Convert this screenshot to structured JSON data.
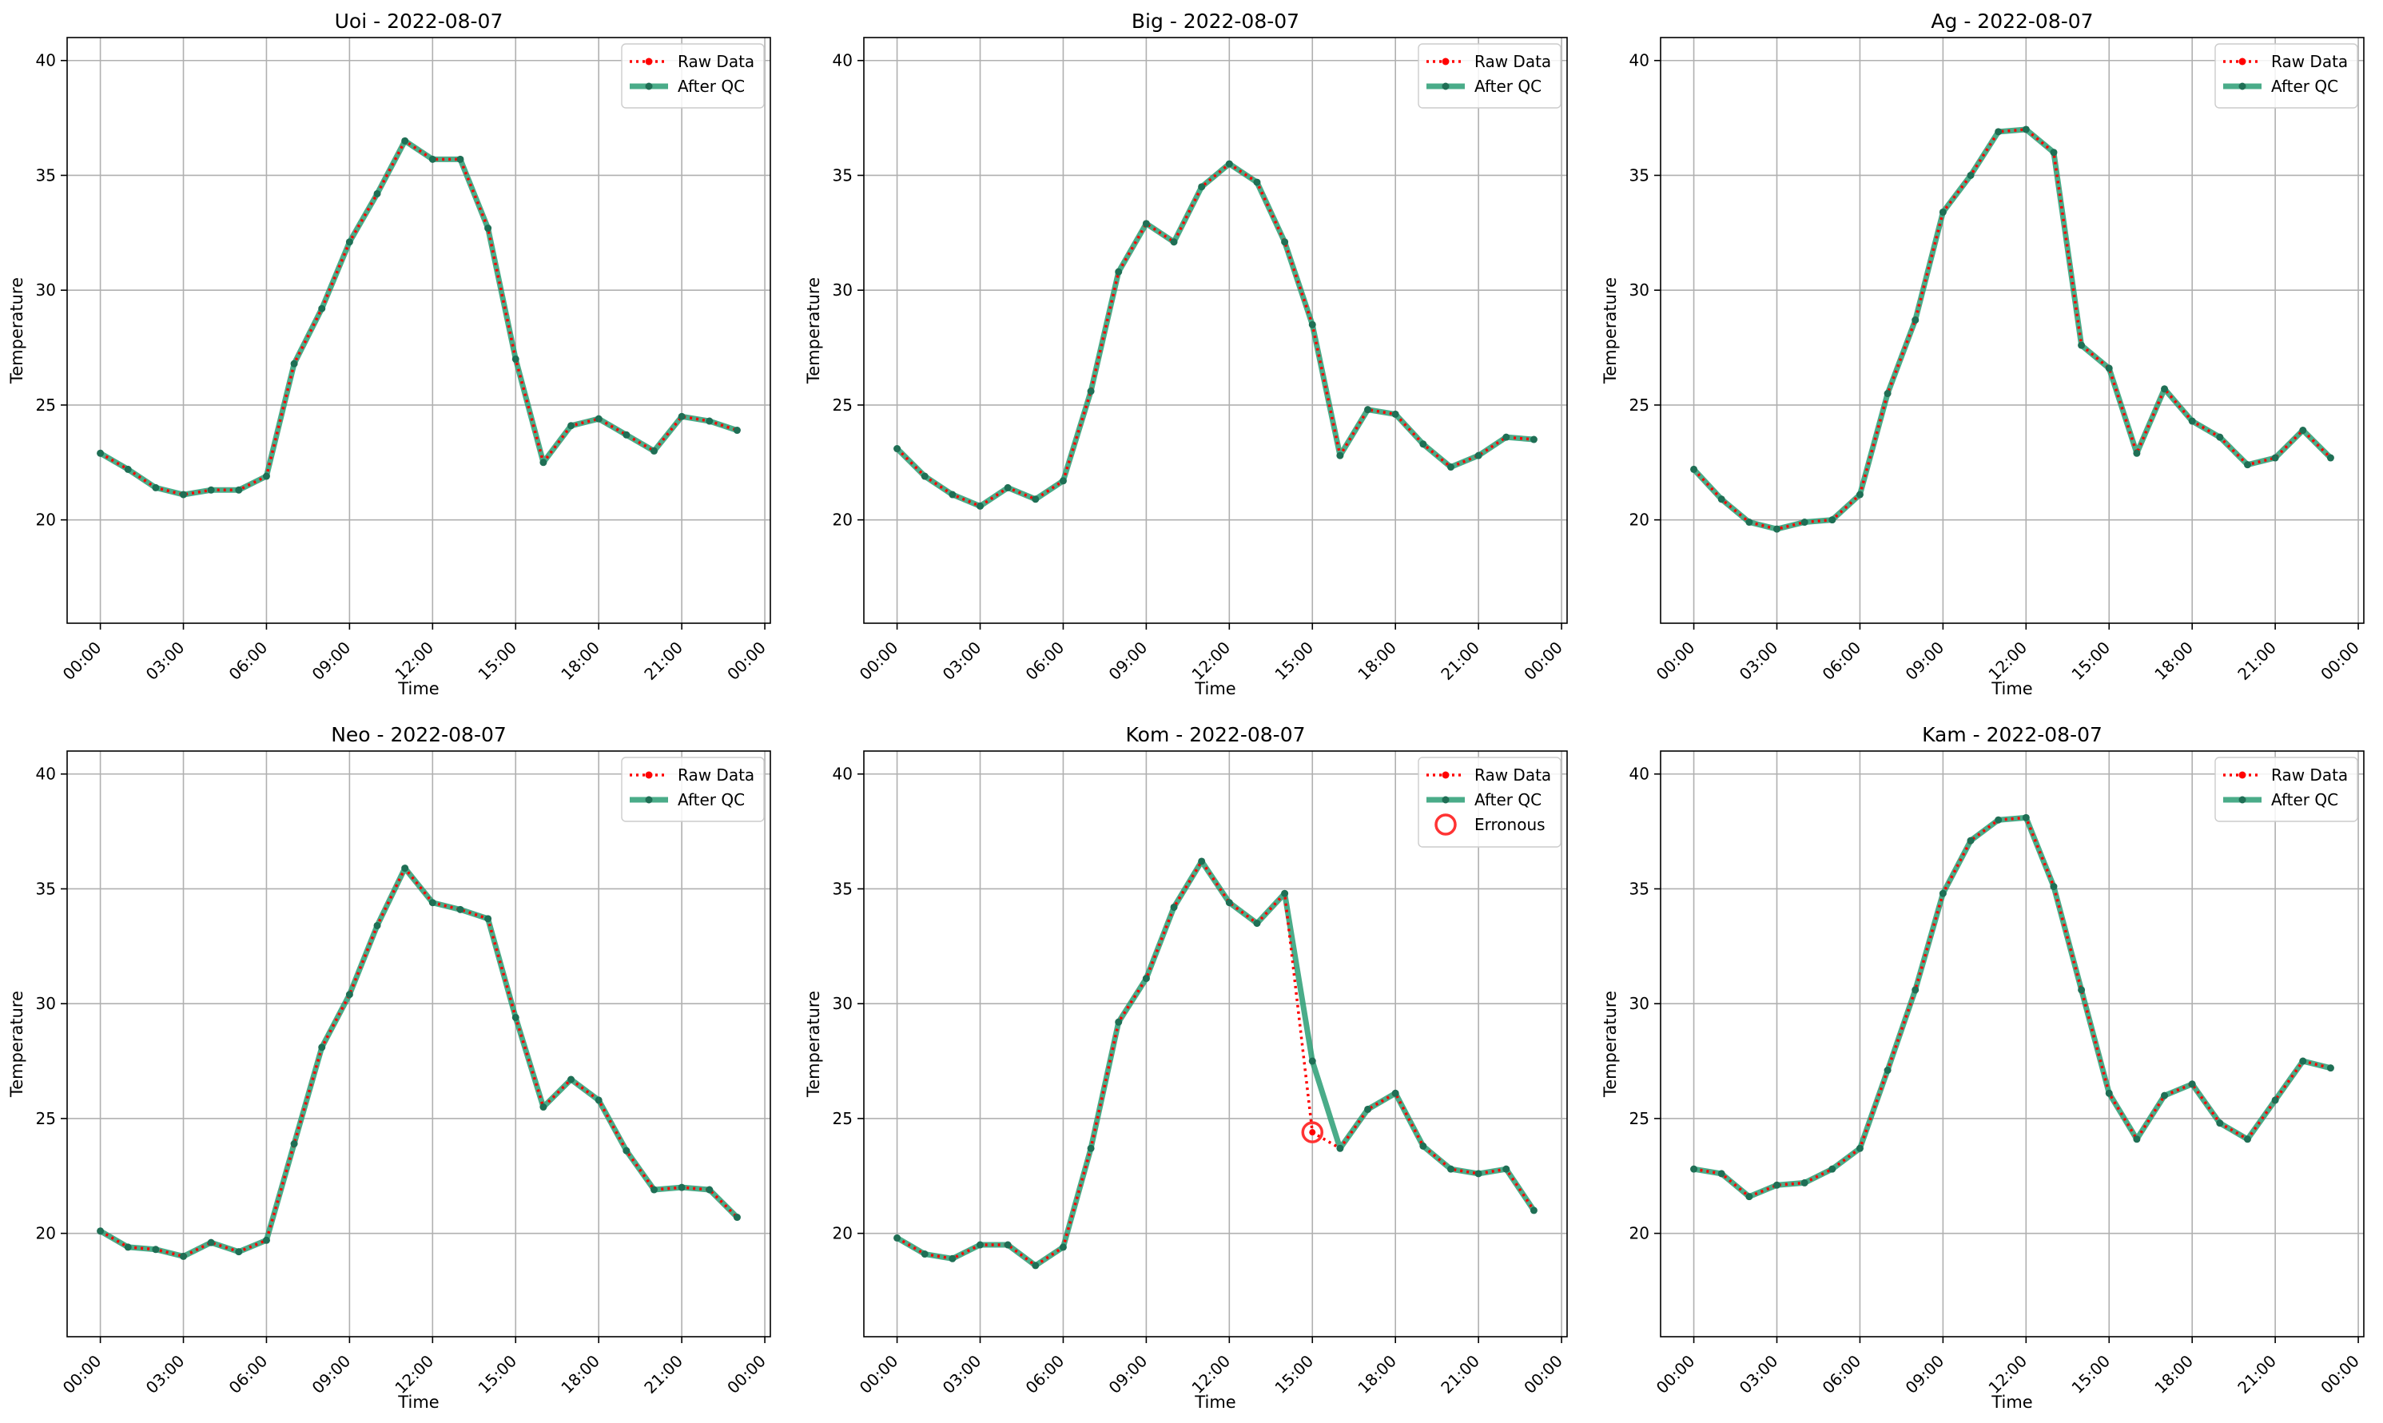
{
  "figure": {
    "colors": {
      "raw": "#ff0000",
      "qc": "#2a9d74",
      "qc_marker": "#1f6f55",
      "erroneous": "#ff3333"
    },
    "legend_labels": {
      "raw": "Raw Data",
      "qc": "After QC",
      "erroneous": "Erronous"
    },
    "xtick_labels": [
      "00:00",
      "03:00",
      "06:00",
      "09:00",
      "12:00",
      "15:00",
      "18:00",
      "21:00",
      "00:00"
    ],
    "ytick_labels": [
      "20",
      "25",
      "30",
      "35",
      "40"
    ]
  },
  "chart_data": [
    {
      "type": "line",
      "title": "Uoi - 2022-08-07",
      "xlabel": "Time",
      "ylabel": "Temperature",
      "ylim": [
        15.5,
        41
      ],
      "xlim_hours": [
        -1.2,
        24.2
      ],
      "grid": true,
      "legend": "top-right",
      "x_hours": [
        0,
        1,
        2,
        3,
        4,
        5,
        6,
        7,
        8,
        9,
        10,
        11,
        12,
        13,
        14,
        15,
        16,
        17,
        18,
        19,
        20,
        21,
        22,
        23
      ],
      "series": [
        {
          "name": "Raw Data",
          "values": [
            22.9,
            22.2,
            21.4,
            21.1,
            21.3,
            21.3,
            21.9,
            26.8,
            29.2,
            32.1,
            34.2,
            36.5,
            35.7,
            35.7,
            32.7,
            27.0,
            22.5,
            24.1,
            24.4,
            23.7,
            23.0,
            24.5,
            24.3,
            23.9
          ]
        },
        {
          "name": "After QC",
          "values": [
            22.9,
            22.2,
            21.4,
            21.1,
            21.3,
            21.3,
            21.9,
            26.8,
            29.2,
            32.1,
            34.2,
            36.5,
            35.7,
            35.7,
            32.7,
            27.0,
            22.5,
            24.1,
            24.4,
            23.7,
            23.0,
            24.5,
            24.3,
            23.9
          ]
        }
      ],
      "erroneous": []
    },
    {
      "type": "line",
      "title": "Big - 2022-08-07",
      "xlabel": "Time",
      "ylabel": "Temperature",
      "ylim": [
        15.5,
        41
      ],
      "xlim_hours": [
        -1.2,
        24.2
      ],
      "grid": true,
      "legend": "top-right",
      "x_hours": [
        0,
        1,
        2,
        3,
        4,
        5,
        6,
        7,
        8,
        9,
        10,
        11,
        12,
        13,
        14,
        15,
        16,
        17,
        18,
        19,
        20,
        21,
        22,
        23
      ],
      "series": [
        {
          "name": "Raw Data",
          "values": [
            23.1,
            21.9,
            21.1,
            20.6,
            21.4,
            20.9,
            21.7,
            25.6,
            30.8,
            32.9,
            32.1,
            34.5,
            35.5,
            34.7,
            32.1,
            28.5,
            22.8,
            24.8,
            24.6,
            23.3,
            22.3,
            22.8,
            23.6,
            23.5
          ]
        },
        {
          "name": "After QC",
          "values": [
            23.1,
            21.9,
            21.1,
            20.6,
            21.4,
            20.9,
            21.7,
            25.6,
            30.8,
            32.9,
            32.1,
            34.5,
            35.5,
            34.7,
            32.1,
            28.5,
            22.8,
            24.8,
            24.6,
            23.3,
            22.3,
            22.8,
            23.6,
            23.5
          ]
        }
      ],
      "erroneous": []
    },
    {
      "type": "line",
      "title": "Ag - 2022-08-07",
      "xlabel": "Time",
      "ylabel": "Temperature",
      "ylim": [
        15.5,
        41
      ],
      "xlim_hours": [
        -1.2,
        24.2
      ],
      "grid": true,
      "legend": "top-right",
      "x_hours": [
        0,
        1,
        2,
        3,
        4,
        5,
        6,
        7,
        8,
        9,
        10,
        11,
        12,
        13,
        14,
        15,
        16,
        17,
        18,
        19,
        20,
        21,
        22,
        23
      ],
      "series": [
        {
          "name": "Raw Data",
          "values": [
            22.2,
            20.9,
            19.9,
            19.6,
            19.9,
            20.0,
            21.1,
            25.5,
            28.7,
            33.4,
            35.0,
            36.9,
            37.0,
            36.0,
            27.6,
            26.6,
            22.9,
            25.7,
            24.3,
            23.6,
            22.4,
            22.7,
            23.9,
            22.7
          ]
        },
        {
          "name": "After QC",
          "values": [
            22.2,
            20.9,
            19.9,
            19.6,
            19.9,
            20.0,
            21.1,
            25.5,
            28.7,
            33.4,
            35.0,
            36.9,
            37.0,
            36.0,
            27.6,
            26.6,
            22.9,
            25.7,
            24.3,
            23.6,
            22.4,
            22.7,
            23.9,
            22.7
          ]
        }
      ],
      "erroneous": []
    },
    {
      "type": "line",
      "title": "Neo - 2022-08-07",
      "xlabel": "Time",
      "ylabel": "Temperature",
      "ylim": [
        15.5,
        41
      ],
      "xlim_hours": [
        -1.2,
        24.2
      ],
      "grid": true,
      "legend": "top-right",
      "x_hours": [
        0,
        1,
        2,
        3,
        4,
        5,
        6,
        7,
        8,
        9,
        10,
        11,
        12,
        13,
        14,
        15,
        16,
        17,
        18,
        19,
        20,
        21,
        22,
        23
      ],
      "series": [
        {
          "name": "Raw Data",
          "values": [
            20.1,
            19.4,
            19.3,
            19.0,
            19.6,
            19.2,
            19.7,
            23.9,
            28.1,
            30.4,
            33.4,
            35.9,
            34.4,
            34.1,
            33.7,
            29.4,
            25.5,
            26.7,
            25.8,
            23.6,
            21.9,
            22.0,
            21.9,
            20.7
          ]
        },
        {
          "name": "After QC",
          "values": [
            20.1,
            19.4,
            19.3,
            19.0,
            19.6,
            19.2,
            19.7,
            23.9,
            28.1,
            30.4,
            33.4,
            35.9,
            34.4,
            34.1,
            33.7,
            29.4,
            25.5,
            26.7,
            25.8,
            23.6,
            21.9,
            22.0,
            21.9,
            20.7
          ]
        }
      ],
      "erroneous": []
    },
    {
      "type": "line",
      "title": "Kom - 2022-08-07",
      "xlabel": "Time",
      "ylabel": "Temperature",
      "ylim": [
        15.5,
        41
      ],
      "xlim_hours": [
        -1.2,
        24.2
      ],
      "grid": true,
      "legend": "top-right",
      "x_hours": [
        0,
        1,
        2,
        3,
        4,
        5,
        6,
        7,
        8,
        9,
        10,
        11,
        12,
        13,
        14,
        15,
        16,
        17,
        18,
        19,
        20,
        21,
        22,
        23
      ],
      "series": [
        {
          "name": "Raw Data",
          "values": [
            19.8,
            19.1,
            18.9,
            19.5,
            19.5,
            18.6,
            19.4,
            23.7,
            29.2,
            31.1,
            34.2,
            36.2,
            34.4,
            33.5,
            34.8,
            24.4,
            23.7,
            25.4,
            26.1,
            23.8,
            22.8,
            22.6,
            22.8,
            21.0
          ]
        },
        {
          "name": "After QC",
          "values": [
            19.8,
            19.1,
            18.9,
            19.5,
            19.5,
            18.6,
            19.4,
            23.7,
            29.2,
            31.1,
            34.2,
            36.2,
            34.4,
            33.5,
            34.8,
            27.5,
            23.7,
            25.4,
            26.1,
            23.8,
            22.8,
            22.6,
            22.8,
            21.0
          ]
        }
      ],
      "erroneous": [
        {
          "x_hour": 15,
          "value": 24.4
        }
      ]
    },
    {
      "type": "line",
      "title": "Kam - 2022-08-07",
      "xlabel": "Time",
      "ylabel": "Temperature",
      "ylim": [
        15.5,
        41
      ],
      "xlim_hours": [
        -1.2,
        24.2
      ],
      "grid": true,
      "legend": "top-right",
      "x_hours": [
        0,
        1,
        2,
        3,
        4,
        5,
        6,
        7,
        8,
        9,
        10,
        11,
        12,
        13,
        14,
        15,
        16,
        17,
        18,
        19,
        20,
        21,
        22,
        23
      ],
      "series": [
        {
          "name": "Raw Data",
          "values": [
            22.8,
            22.6,
            21.6,
            22.1,
            22.2,
            22.8,
            23.7,
            27.1,
            30.6,
            34.8,
            37.1,
            38.0,
            38.1,
            35.1,
            30.6,
            26.1,
            24.1,
            26.0,
            26.5,
            24.8,
            24.1,
            25.8,
            27.5,
            27.2
          ]
        },
        {
          "name": "After QC",
          "values": [
            22.8,
            22.6,
            21.6,
            22.1,
            22.2,
            22.8,
            23.7,
            27.1,
            30.6,
            34.8,
            37.1,
            38.0,
            38.1,
            35.1,
            30.6,
            26.1,
            24.1,
            26.0,
            26.5,
            24.8,
            24.1,
            25.8,
            27.5,
            27.2
          ]
        }
      ],
      "erroneous": []
    }
  ]
}
